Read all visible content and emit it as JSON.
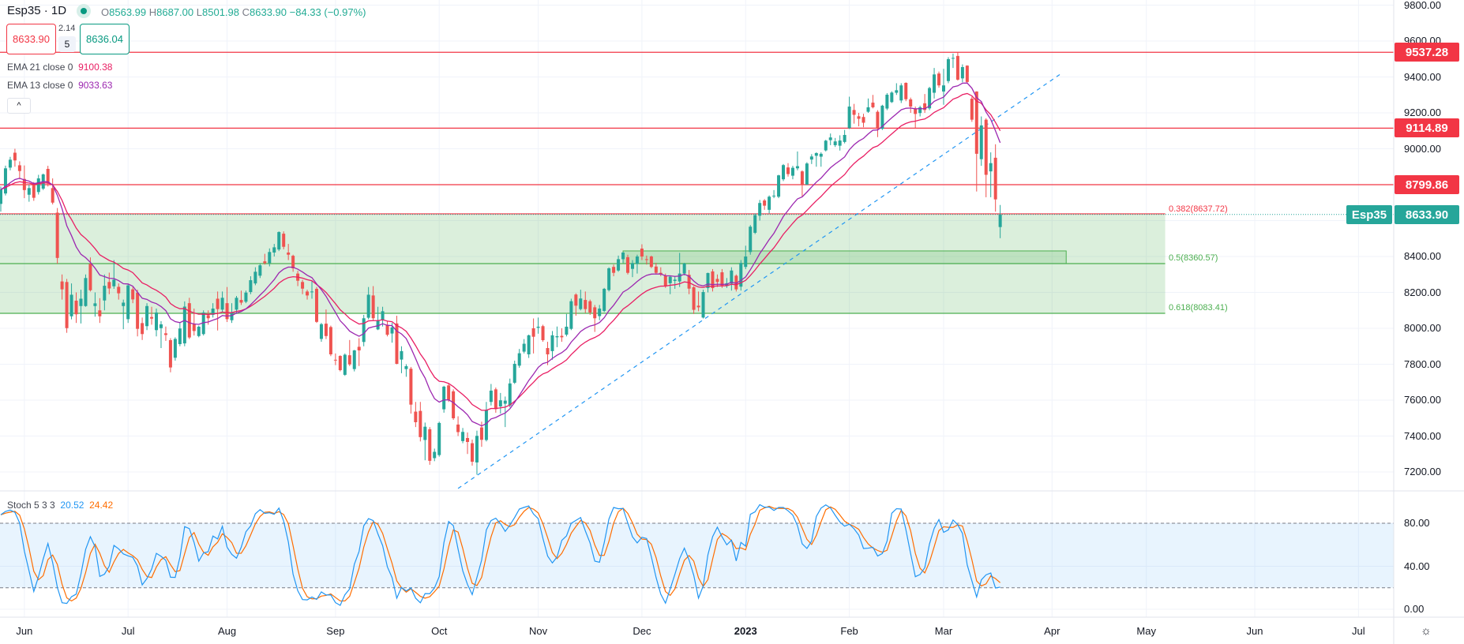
{
  "header": {
    "symbol_title": "Esp35 · 1D",
    "market_status_icon": "market-open-dot-icon",
    "ohlc": {
      "o_label": "O",
      "o": "8563.99",
      "h_label": "H",
      "h": "8687.00",
      "l_label": "L",
      "l": "8501.98",
      "c_label": "C",
      "c": "8633.90",
      "change": "−84.33 (−0.97%)"
    },
    "sell_price": "8633.90",
    "spread": "2.14",
    "quantity": "5",
    "buy_price": "8636.04",
    "collapse_label": "^"
  },
  "indicators": {
    "ema21": {
      "label": "EMA 21 close 0",
      "value": "9100.38",
      "period": 21,
      "color": "#e91e63"
    },
    "ema13": {
      "label": "EMA 13 close 0",
      "value": "9033.63",
      "period": 13,
      "color": "#9c27b0"
    },
    "stoch": {
      "label": "Stoch 5 3 3",
      "k": "20.52",
      "d": "24.42",
      "k_color": "#2196f3",
      "d_color": "#ff6d00"
    }
  },
  "colors": {
    "up": "#26a69a",
    "down": "#ef5350",
    "level": "#f23645",
    "fib_green": "#4caf50",
    "trendline": "#2196f3"
  },
  "chart_data": {
    "type": "candlestick",
    "symbol": "Esp35",
    "interval": "1D",
    "last_date": "2023-03-17",
    "last_price": "8633.90",
    "ylim": [
      7100,
      9850
    ],
    "y_ticks": [
      "9800.00",
      "9600.00",
      "9400.00",
      "9200.00",
      "9000.00",
      "8400.00",
      "8200.00",
      "8000.00",
      "7800.00",
      "7600.00",
      "7400.00",
      "7200.00"
    ],
    "y_tick_values": [
      9800,
      9600,
      9400,
      9200,
      9000,
      8400,
      8200,
      8000,
      7800,
      7600,
      7400,
      7200
    ],
    "x_ticks": [
      {
        "label": "Jun",
        "date": "2022-06-01"
      },
      {
        "label": "Jul",
        "date": "2022-07-01"
      },
      {
        "label": "Aug",
        "date": "2022-08-01"
      },
      {
        "label": "Sep",
        "date": "2022-09-01"
      },
      {
        "label": "Oct",
        "date": "2022-10-03"
      },
      {
        "label": "Nov",
        "date": "2022-11-01"
      },
      {
        "label": "Dec",
        "date": "2022-12-01"
      },
      {
        "label": "2023",
        "date": "2023-01-02",
        "bold": true
      },
      {
        "label": "Feb",
        "date": "2023-02-01"
      },
      {
        "label": "Mar",
        "date": "2023-03-01"
      },
      {
        "label": "Apr",
        "date": "2023-04-03"
      },
      {
        "label": "May",
        "date": "2023-05-01"
      },
      {
        "label": "Jun",
        "date": "2023-06-01"
      },
      {
        "label": "Jul",
        "date": "2023-07-03"
      }
    ],
    "candles_ohlc": [
      [
        8693,
        8790,
        8650,
        8773
      ],
      [
        8751,
        8906,
        8740,
        8891
      ],
      [
        8895,
        8955,
        8880,
        8939
      ],
      [
        8978,
        9000,
        8900,
        8935
      ],
      [
        8908,
        8930,
        8830,
        8876
      ],
      [
        8832,
        8907,
        8725,
        8770
      ],
      [
        8744,
        8800,
        8705,
        8781
      ],
      [
        8800,
        8815,
        8710,
        8727
      ],
      [
        8759,
        8855,
        8745,
        8835
      ],
      [
        8778,
        8862,
        8770,
        8857
      ],
      [
        8888,
        8905,
        8790,
        8806
      ],
      [
        8781,
        8835,
        8690,
        8700
      ],
      [
        8644,
        8670,
        8360,
        8392
      ],
      [
        8261,
        8300,
        8160,
        8217
      ],
      [
        8258,
        8275,
        7975,
        8001
      ],
      [
        8067,
        8250,
        8050,
        8187
      ],
      [
        8154,
        8200,
        8030,
        8078
      ],
      [
        8124,
        8215,
        8027,
        8165
      ],
      [
        8124,
        8300,
        8120,
        8280
      ],
      [
        8359,
        8395,
        8205,
        8212
      ],
      [
        8124,
        8200,
        8065,
        8139
      ],
      [
        8100,
        8168,
        8030,
        8067
      ],
      [
        8155,
        8300,
        8100,
        8237
      ],
      [
        8258,
        8310,
        8190,
        8222
      ],
      [
        8234,
        8380,
        8220,
        8271
      ],
      [
        8231,
        8250,
        8160,
        8195
      ],
      [
        8124,
        8160,
        7995,
        8143
      ],
      [
        8051,
        8245,
        8030,
        8239
      ],
      [
        8217,
        8230,
        8140,
        8161
      ],
      [
        8199,
        8215,
        7955,
        7997
      ],
      [
        8029,
        8060,
        7935,
        7968
      ],
      [
        8012,
        8140,
        7990,
        8124
      ],
      [
        8063,
        8120,
        8020,
        8054
      ],
      [
        7990,
        8110,
        7955,
        8088
      ],
      [
        8001,
        8040,
        7890,
        8022
      ],
      [
        7972,
        8010,
        7930,
        7963
      ],
      [
        7934,
        7945,
        7755,
        7782
      ],
      [
        7836,
        7950,
        7820,
        7941
      ],
      [
        7912,
        8030,
        7900,
        7999
      ],
      [
        7916,
        8150,
        7900,
        8121
      ],
      [
        8140,
        8170,
        7940,
        7949
      ],
      [
        8026,
        8110,
        7960,
        7985
      ],
      [
        7957,
        8015,
        7950,
        8009
      ],
      [
        7968,
        8100,
        7960,
        8088
      ],
      [
        8073,
        8100,
        8020,
        8056
      ],
      [
        8075,
        8140,
        8060,
        8110
      ],
      [
        8165,
        8205,
        7988,
        8107
      ],
      [
        8104,
        8205,
        8090,
        8170
      ],
      [
        8140,
        8230,
        8035,
        8051
      ],
      [
        8045,
        8140,
        8030,
        8088
      ],
      [
        8104,
        8180,
        8080,
        8170
      ],
      [
        8158,
        8210,
        8130,
        8143
      ],
      [
        8148,
        8210,
        8140,
        8199
      ],
      [
        8202,
        8290,
        8190,
        8268
      ],
      [
        8250,
        8340,
        8240,
        8315
      ],
      [
        8293,
        8360,
        8280,
        8351
      ],
      [
        8373,
        8415,
        8355,
        8363
      ],
      [
        8363,
        8445,
        8345,
        8425
      ],
      [
        8422,
        8470,
        8400,
        8451
      ],
      [
        8439,
        8540,
        8430,
        8536
      ],
      [
        8527,
        8540,
        8440,
        8454
      ],
      [
        8422,
        8470,
        8380,
        8410
      ],
      [
        8404,
        8410,
        8315,
        8334
      ],
      [
        8305,
        8320,
        8235,
        8265
      ],
      [
        8258,
        8270,
        8190,
        8221
      ],
      [
        8205,
        8215,
        8160,
        8183
      ],
      [
        8202,
        8265,
        8165,
        8205
      ],
      [
        8220,
        8230,
        8030,
        8036
      ],
      [
        7941,
        8030,
        7925,
        8023
      ],
      [
        8026,
        8105,
        7940,
        7957
      ],
      [
        8007,
        8015,
        7845,
        7855
      ],
      [
        7825,
        7860,
        7795,
        7824
      ],
      [
        7846,
        7850,
        7760,
        7767
      ],
      [
        7741,
        7860,
        7735,
        7853
      ],
      [
        7850,
        7935,
        7790,
        7799
      ],
      [
        7773,
        7880,
        7760,
        7877
      ],
      [
        7897,
        7945,
        7790,
        7877
      ],
      [
        7924,
        8075,
        7900,
        8056
      ],
      [
        8059,
        8230,
        8050,
        8187
      ],
      [
        8183,
        8235,
        8045,
        8056
      ],
      [
        7994,
        8120,
        7990,
        8044
      ],
      [
        8044,
        8120,
        8010,
        8095
      ],
      [
        8019,
        8040,
        7955,
        7964
      ],
      [
        7971,
        8030,
        7920,
        8005
      ],
      [
        8027,
        8070,
        7800,
        7802
      ],
      [
        7826,
        7900,
        7750,
        7873
      ],
      [
        7773,
        7800,
        7730,
        7789
      ],
      [
        7775,
        7785,
        7525,
        7575
      ],
      [
        7536,
        7590,
        7450,
        7477
      ],
      [
        7540,
        7590,
        7370,
        7394
      ],
      [
        7378,
        7475,
        7265,
        7452
      ],
      [
        7438,
        7450,
        7240,
        7262
      ],
      [
        7277,
        7330,
        7260,
        7312
      ],
      [
        7294,
        7480,
        7285,
        7473
      ],
      [
        7549,
        7680,
        7530,
        7675
      ],
      [
        7682,
        7695,
        7590,
        7602
      ],
      [
        7649,
        7660,
        7490,
        7499
      ],
      [
        7464,
        7510,
        7400,
        7422
      ],
      [
        7372,
        7445,
        7360,
        7423
      ],
      [
        7389,
        7420,
        7300,
        7367
      ],
      [
        7360,
        7380,
        7235,
        7257
      ],
      [
        7253,
        7430,
        7185,
        7401
      ],
      [
        7448,
        7480,
        7340,
        7379
      ],
      [
        7378,
        7590,
        7370,
        7546
      ],
      [
        7590,
        7690,
        7570,
        7653
      ],
      [
        7660,
        7670,
        7530,
        7550
      ],
      [
        7565,
        7640,
        7525,
        7599
      ],
      [
        7580,
        7620,
        7450,
        7597
      ],
      [
        7570,
        7720,
        7560,
        7693
      ],
      [
        7697,
        7820,
        7690,
        7802
      ],
      [
        7792,
        7885,
        7780,
        7861
      ],
      [
        7870,
        7940,
        7860,
        7914
      ],
      [
        7855,
        7965,
        7835,
        7961
      ],
      [
        8000,
        8055,
        7860,
        7953
      ],
      [
        8003,
        8060,
        7970,
        8009
      ],
      [
        8012,
        8020,
        7925,
        7934
      ],
      [
        7890,
        7925,
        7795,
        7855
      ],
      [
        7873,
        7985,
        7825,
        7961
      ],
      [
        7950,
        8010,
        7895,
        7956
      ],
      [
        7958,
        8000,
        7925,
        7950
      ],
      [
        7965,
        8080,
        7955,
        8009
      ],
      [
        7997,
        8165,
        7990,
        8151
      ],
      [
        8188,
        8195,
        8070,
        8126
      ],
      [
        8107,
        8215,
        8100,
        8166
      ],
      [
        8158,
        8205,
        8085,
        8107
      ],
      [
        8151,
        8160,
        8075,
        8088
      ],
      [
        8117,
        8130,
        7980,
        8056
      ],
      [
        8068,
        8130,
        8045,
        8110
      ],
      [
        8097,
        8225,
        8090,
        8220
      ],
      [
        8213,
        8340,
        8205,
        8334
      ],
      [
        8342,
        8355,
        8290,
        8309
      ],
      [
        8322,
        8405,
        8315,
        8385
      ],
      [
        8385,
        8425,
        8365,
        8422
      ],
      [
        8396,
        8410,
        8300,
        8309
      ],
      [
        8331,
        8380,
        8285,
        8363
      ],
      [
        8359,
        8410,
        8305,
        8400
      ],
      [
        8444,
        8468,
        8380,
        8400
      ],
      [
        8385,
        8405,
        8355,
        8381
      ],
      [
        8400,
        8405,
        8335,
        8342
      ],
      [
        8344,
        8365,
        8300,
        8309
      ],
      [
        8309,
        8340,
        8290,
        8300
      ],
      [
        8293,
        8305,
        8225,
        8236
      ],
      [
        8251,
        8295,
        8190,
        8287
      ],
      [
        8264,
        8290,
        8220,
        8271
      ],
      [
        8261,
        8420,
        8230,
        8305
      ],
      [
        8305,
        8365,
        8295,
        8361
      ],
      [
        8298,
        8325,
        8190,
        8221
      ],
      [
        8229,
        8235,
        8080,
        8103
      ],
      [
        8126,
        8205,
        8095,
        8117
      ],
      [
        8060,
        8215,
        8055,
        8202
      ],
      [
        8224,
        8310,
        8200,
        8308
      ],
      [
        8317,
        8330,
        8205,
        8224
      ],
      [
        8275,
        8300,
        8230,
        8258
      ],
      [
        8312,
        8330,
        8225,
        8239
      ],
      [
        8236,
        8280,
        8225,
        8251
      ],
      [
        8249,
        8340,
        8210,
        8322
      ],
      [
        8293,
        8300,
        8205,
        8217
      ],
      [
        8232,
        8380,
        8210,
        8364
      ],
      [
        8342,
        8460,
        8330,
        8400
      ],
      [
        8425,
        8575,
        8410,
        8566
      ],
      [
        8532,
        8640,
        8525,
        8630
      ],
      [
        8627,
        8715,
        8600,
        8698
      ],
      [
        8712,
        8720,
        8660,
        8683
      ],
      [
        8660,
        8740,
        8640,
        8733
      ],
      [
        8736,
        8770,
        8725,
        8739
      ],
      [
        8733,
        8855,
        8725,
        8852
      ],
      [
        8830,
        8915,
        8820,
        8909
      ],
      [
        8896,
        8920,
        8845,
        8859
      ],
      [
        8850,
        8905,
        8830,
        8894
      ],
      [
        8891,
        8985,
        8880,
        8903
      ],
      [
        8874,
        8880,
        8730,
        8800
      ],
      [
        8800,
        8925,
        8800,
        8918
      ],
      [
        8940,
        8970,
        8915,
        8957
      ],
      [
        8961,
        8980,
        8900,
        8976
      ],
      [
        8956,
        8980,
        8900,
        8972
      ],
      [
        8991,
        9050,
        8985,
        9045
      ],
      [
        9048,
        9085,
        9020,
        9063
      ],
      [
        9020,
        9060,
        9010,
        9041
      ],
      [
        9017,
        9075,
        8990,
        9046
      ],
      [
        9038,
        9105,
        9030,
        9077
      ],
      [
        9115,
        9290,
        9110,
        9235
      ],
      [
        9216,
        9250,
        9140,
        9189
      ],
      [
        9181,
        9200,
        9125,
        9167
      ],
      [
        9177,
        9195,
        9120,
        9145
      ],
      [
        9206,
        9280,
        9200,
        9231
      ],
      [
        9257,
        9300,
        9225,
        9231
      ],
      [
        9206,
        9215,
        9065,
        9111
      ],
      [
        9111,
        9245,
        9105,
        9240
      ],
      [
        9224,
        9310,
        9215,
        9301
      ],
      [
        9260,
        9320,
        9255,
        9313
      ],
      [
        9312,
        9365,
        9300,
        9326
      ],
      [
        9269,
        9365,
        9255,
        9353
      ],
      [
        9367,
        9370,
        9265,
        9276
      ],
      [
        9275,
        9285,
        9200,
        9235
      ],
      [
        9221,
        9235,
        9115,
        9194
      ],
      [
        9199,
        9240,
        9180,
        9231
      ],
      [
        9253,
        9305,
        9200,
        9216
      ],
      [
        9225,
        9345,
        9215,
        9338
      ],
      [
        9312,
        9450,
        9280,
        9414
      ],
      [
        9419,
        9430,
        9340,
        9353
      ],
      [
        9319,
        9445,
        9245,
        9353
      ],
      [
        9377,
        9510,
        9365,
        9499
      ],
      [
        9502,
        9530,
        9450,
        9506
      ],
      [
        9517,
        9537,
        9380,
        9385
      ],
      [
        9392,
        9470,
        9370,
        9455
      ],
      [
        9463,
        9465,
        9365,
        9372
      ],
      [
        9279,
        9290,
        9150,
        9162
      ],
      [
        9319,
        9320,
        8762,
        8972
      ],
      [
        8942,
        9180,
        8905,
        9130
      ],
      [
        9162,
        9170,
        8730,
        8855
      ],
      [
        8874,
        8980,
        8730,
        8920
      ],
      [
        8950,
        9025,
        8650,
        8718
      ],
      [
        8563.99,
        8687.0,
        8501.98,
        8633.9
      ]
    ],
    "horizontal_levels": [
      {
        "price": 9537.28,
        "label": "9537.28"
      },
      {
        "price": 9114.89,
        "label": "9114.89"
      },
      {
        "price": 8799.86,
        "label": "8799.86"
      }
    ],
    "fib_levels": [
      {
        "ratio_label": "0.382(8637.72)",
        "price": 8637.72,
        "color": "#f23645"
      },
      {
        "ratio_label": "0.5(8360.57)",
        "price": 8360.57,
        "color": "#4caf50"
      },
      {
        "ratio_label": "0.618(8083.41)",
        "price": 8083.41,
        "color": "#4caf50"
      }
    ],
    "fib_zone_end_date": "2023-05-05",
    "demand_box": {
      "from_date": "2022-11-25",
      "to_date": "2023-04-06",
      "top": 8431,
      "bottom": 8360.57
    },
    "trendline": {
      "from": {
        "date": "2022-10-07",
        "price": 7108
      },
      "to": {
        "date": "2023-04-05",
        "price": 9420
      },
      "style": "dashed"
    },
    "stoch_pane": {
      "ylim": [
        0,
        100
      ],
      "y_ticks": [
        "80.00",
        "40.00",
        "0.00"
      ],
      "y_tick_values": [
        80,
        40,
        0
      ],
      "band": [
        20,
        80
      ]
    }
  },
  "footer": {
    "settings_icon": "gear-icon"
  }
}
